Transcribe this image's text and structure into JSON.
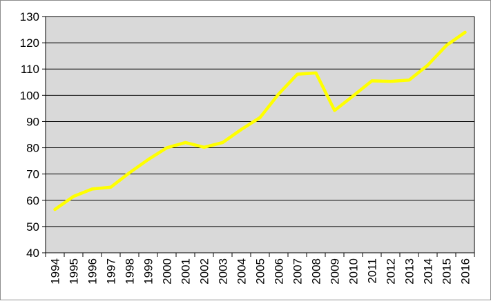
{
  "chart_data": {
    "type": "line",
    "title": "",
    "xlabel": "",
    "ylabel": "",
    "x": [
      "1994",
      "1995",
      "1996",
      "1997",
      "1998",
      "1999",
      "2000",
      "2001",
      "2002",
      "2003",
      "2004",
      "2005",
      "2006",
      "2007",
      "2008",
      "2009",
      "2010",
      "2011",
      "2012",
      "2013",
      "2014",
      "2015",
      "2016"
    ],
    "series": [
      {
        "values": [
          56.5,
          61.5,
          64.3,
          65.0,
          70.5,
          75.5,
          80.0,
          82.0,
          80.2,
          82.0,
          87.0,
          91.5,
          100.5,
          108.0,
          108.5,
          94.2,
          99.8,
          105.5,
          105.3,
          105.8,
          111.5,
          119.0,
          124.0
        ],
        "color": "#ffff00"
      }
    ],
    "ylim": [
      40,
      130
    ],
    "yticks": [
      40,
      50,
      60,
      70,
      80,
      90,
      100,
      110,
      120,
      130
    ],
    "grid": true,
    "legend": "none",
    "plot_background": "#d9d9d9",
    "gridline_color": "#000000"
  }
}
